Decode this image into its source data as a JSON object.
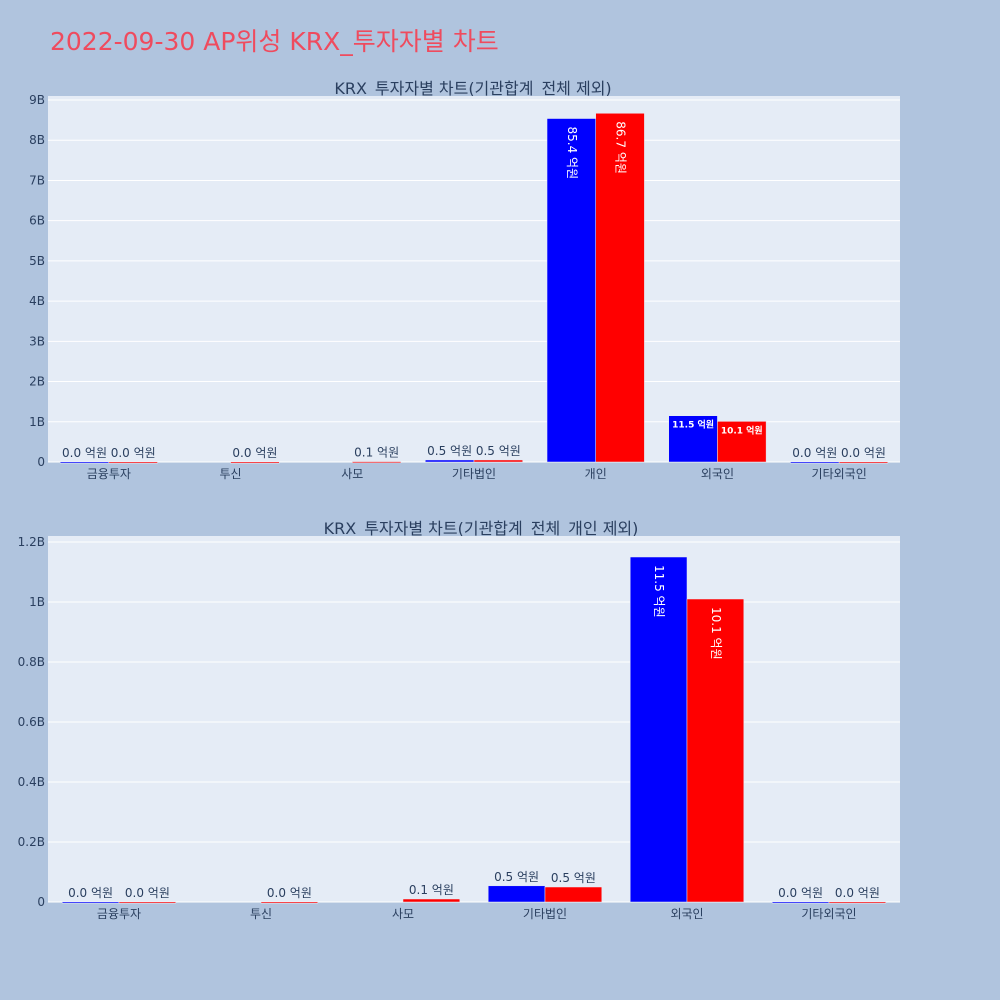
{
  "page": {
    "title": "2022-09-30 AP위성 KRX_투자자별 차트"
  },
  "colors": {
    "background": "#b0c4de",
    "plot_bg": "#e5ecf6",
    "grid": "#ffffff",
    "title": "#ef4b5e",
    "axis_text": "#2a3f5f",
    "series_a": "#0000ff",
    "series_b": "#ff0000"
  },
  "chart_data": [
    {
      "type": "bar",
      "title": "KRX_투자자별 차트(기관합계_전체 제외)",
      "categories": [
        "금융투자",
        "투신",
        "사모",
        "기타법인",
        "개인",
        "외국인",
        "기타외국인"
      ],
      "ylim": [
        0,
        9.1
      ],
      "yticks": [
        0,
        1,
        2,
        3,
        4,
        5,
        6,
        7,
        8,
        9
      ],
      "ytick_labels": [
        "0",
        "1B",
        "2B",
        "3B",
        "4B",
        "5B",
        "6B",
        "7B",
        "8B",
        "9B"
      ],
      "grid": true,
      "series": [
        {
          "color": "#0000ff",
          "values": [
            0.0,
            null,
            null,
            0.05,
            8.54,
            1.15,
            0.0
          ],
          "labels": [
            "0.0 억원",
            "",
            "",
            "0.5 억원",
            "85.4 억원",
            "11.5 억원",
            "0.0 억원"
          ]
        },
        {
          "color": "#ff0000",
          "values": [
            0.0,
            0.0,
            0.01,
            0.05,
            8.67,
            1.01,
            0.0
          ],
          "labels": [
            "0.0 억원",
            "0.0 억원",
            "0.1 억원",
            "0.5 억원",
            "86.7 억원",
            "10.1 억원",
            "0.0 억원"
          ]
        }
      ]
    },
    {
      "type": "bar",
      "title": "KRX_투자자별 차트(기관합계_전체_개인 제외)",
      "categories": [
        "금융투자",
        "투신",
        "사모",
        "기타법인",
        "외국인",
        "기타외국인"
      ],
      "ylim": [
        0,
        1.22
      ],
      "yticks": [
        0,
        0.2,
        0.4,
        0.6,
        0.8,
        1.0,
        1.2
      ],
      "ytick_labels": [
        "0",
        "0.2B",
        "0.4B",
        "0.6B",
        "0.8B",
        "1B",
        "1.2B"
      ],
      "grid": true,
      "series": [
        {
          "color": "#0000ff",
          "values": [
            0.0,
            null,
            null,
            0.054,
            1.15,
            0.0
          ],
          "labels": [
            "0.0 억원",
            "",
            "",
            "0.5 억원",
            "11.5 억원",
            "0.0 억원"
          ]
        },
        {
          "color": "#ff0000",
          "values": [
            0.0,
            0.0,
            0.01,
            0.05,
            1.01,
            0.0
          ],
          "labels": [
            "0.0 억원",
            "0.0 억원",
            "0.1 억원",
            "0.5 억원",
            "10.1 억원",
            "0.0 억원"
          ]
        }
      ]
    }
  ]
}
